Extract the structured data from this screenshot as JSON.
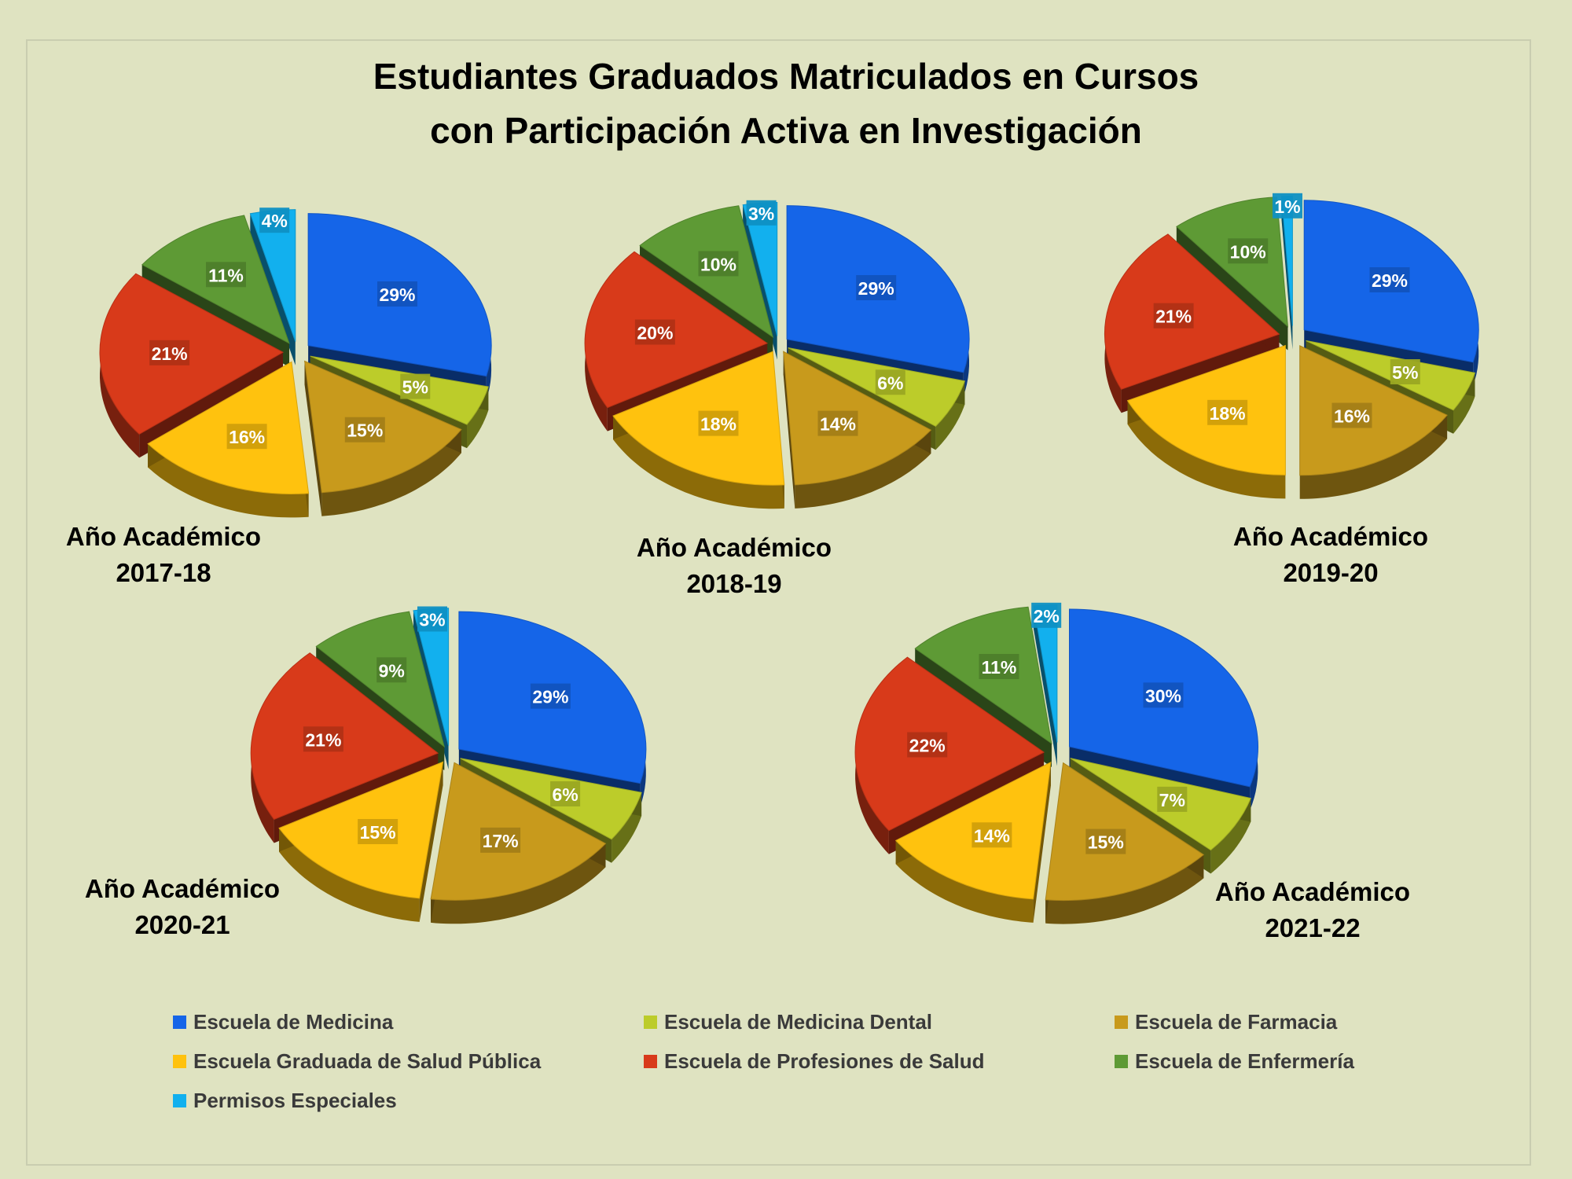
{
  "title_line1": "Estudiantes Graduados Matriculados en Cursos",
  "title_line2": "con Participación Activa en Investigación",
  "categories": [
    "Escuela de Medicina",
    "Escuela de Medicina Dental",
    "Escuela de Farmacia",
    "Escuela Graduada de Salud Pública",
    "Escuela de Profesiones de Salud",
    "Escuela de Enfermería",
    "Permisos Especiales"
  ],
  "colors": [
    "#1565e8",
    "#bccc2a",
    "#c89a1c",
    "#ffc20e",
    "#d83a1a",
    "#5e9a35",
    "#12b0ee"
  ],
  "chart_data": [
    {
      "type": "pie",
      "title_line1": "Año Académico",
      "title_line2": "2017-18",
      "categories": [
        "Escuela de Medicina",
        "Escuela de Medicina Dental",
        "Escuela de Farmacia",
        "Escuela Graduada de Salud Pública",
        "Escuela de Profesiones de Salud",
        "Escuela de Enfermería",
        "Permisos Especiales"
      ],
      "values": [
        29,
        5,
        15,
        16,
        21,
        11,
        4
      ],
      "labels": [
        "29%",
        "5%",
        "15%",
        "16%",
        "21%",
        "11%",
        "4%"
      ]
    },
    {
      "type": "pie",
      "title_line1": "Año Académico",
      "title_line2": "2018-19",
      "categories": [
        "Escuela de Medicina",
        "Escuela de Medicina Dental",
        "Escuela de Farmacia",
        "Escuela Graduada de Salud Pública",
        "Escuela de Profesiones de Salud",
        "Escuela de Enfermería",
        "Permisos Especiales"
      ],
      "values": [
        29,
        6,
        14,
        18,
        20,
        10,
        3
      ],
      "labels": [
        "29%",
        "6%",
        "14%",
        "18%",
        "20%",
        "10%",
        "3%"
      ]
    },
    {
      "type": "pie",
      "title_line1": "Año Académico",
      "title_line2": "2019-20",
      "categories": [
        "Escuela de Medicina",
        "Escuela de Medicina Dental",
        "Escuela de Farmacia",
        "Escuela Graduada de Salud Pública",
        "Escuela de Profesiones de Salud",
        "Escuela de Enfermería",
        "Permisos Especiales"
      ],
      "values": [
        29,
        5,
        16,
        18,
        21,
        10,
        1
      ],
      "labels": [
        "29%",
        "5%",
        "16%",
        "18%",
        "21%",
        "10%",
        "1%"
      ]
    },
    {
      "type": "pie",
      "title_line1": "Año Académico",
      "title_line2": "2020-21",
      "categories": [
        "Escuela de Medicina",
        "Escuela de Medicina Dental",
        "Escuela de Farmacia",
        "Escuela Graduada de Salud Pública",
        "Escuela de Profesiones de Salud",
        "Escuela de Enfermería",
        "Permisos Especiales"
      ],
      "values": [
        29,
        6,
        17,
        15,
        21,
        9,
        3
      ],
      "labels": [
        "29%",
        "6%",
        "17%",
        "15%",
        "21%",
        "9%",
        "3%"
      ]
    },
    {
      "type": "pie",
      "title_line1": "Año Académico",
      "title_line2": "2021-22",
      "categories": [
        "Escuela de Medicina",
        "Escuela de Medicina Dental",
        "Escuela de Farmacia",
        "Escuela Graduada de Salud Pública",
        "Escuela de Profesiones de Salud",
        "Escuela de Enfermería",
        "Permisos Especiales"
      ],
      "values": [
        30,
        7,
        15,
        14,
        22,
        11,
        2
      ],
      "labels": [
        "30%",
        "7%",
        "15%",
        "14%",
        "22%",
        "11%",
        "2%"
      ]
    }
  ],
  "legend": {
    "items": [
      "Escuela de Medicina",
      "Escuela de Medicina Dental",
      "Escuela de Farmacia",
      "Escuela Graduada de Salud Pública",
      "Escuela de Profesiones de Salud",
      "Escuela de Enfermería",
      "Permisos Especiales"
    ]
  }
}
